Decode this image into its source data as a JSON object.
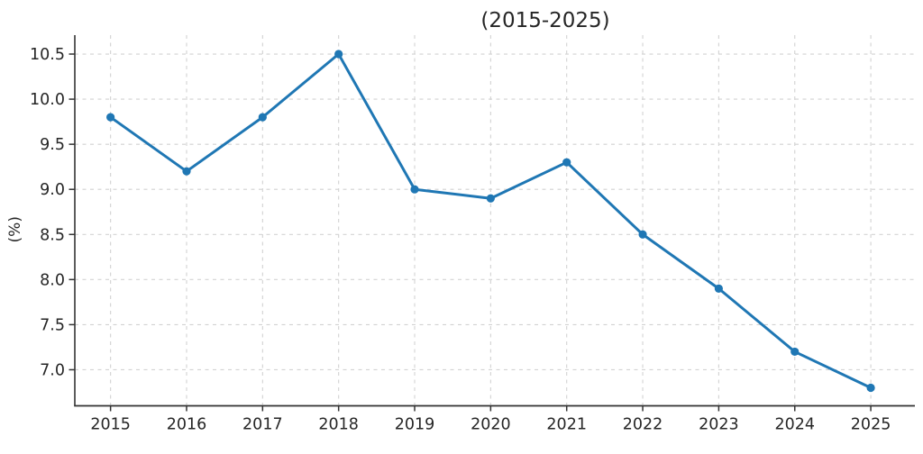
{
  "chart_data": {
    "type": "line",
    "title": "(2015-2025)",
    "xlabel": "",
    "ylabel": "(%)",
    "x": [
      2015,
      2016,
      2017,
      2018,
      2019,
      2020,
      2021,
      2022,
      2023,
      2024,
      2025
    ],
    "values": [
      9.8,
      9.2,
      9.8,
      10.5,
      9.0,
      8.9,
      9.3,
      8.5,
      7.9,
      7.2,
      6.8
    ],
    "yticks": [
      7.0,
      7.5,
      8.0,
      8.5,
      9.0,
      9.5,
      10.0,
      10.5
    ],
    "ytick_labels": [
      "7.0",
      "7.5",
      "8.0",
      "8.5",
      "9.0",
      "9.5",
      "10.0",
      "10.5"
    ],
    "xtick_labels": [
      "2015",
      "2016",
      "2017",
      "2018",
      "2019",
      "2020",
      "2021",
      "2022",
      "2023",
      "2024",
      "2025"
    ],
    "xlim": [
      2014.53,
      2025.58
    ],
    "ylim": [
      6.6,
      10.71
    ],
    "grid": true,
    "grid_style": "dashed",
    "legend": false,
    "line_color": "#1f77b4",
    "marker_color": "#1f77b4",
    "grid_color": "#d2d2d2",
    "spine_color": "#333333",
    "text_color": "#262626",
    "background_color": "#ffffff"
  }
}
